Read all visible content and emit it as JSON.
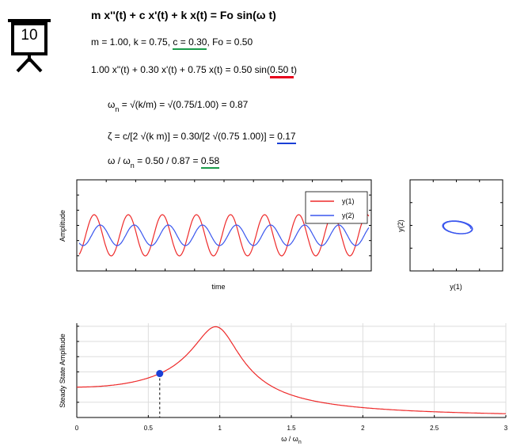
{
  "badge": {
    "number": "10",
    "icon": "presentation-board-icon"
  },
  "equations": {
    "title": "m x''(t) + c x'(t) + k x(t) = Fo sin(ω t)",
    "params_a": "m = 1.00, k = 0.75, ",
    "params_c": "c = 0.30",
    "params_b": ", Fo = 0.50",
    "ode_a": "1.00 x''(t) + 0.30 x'(t) + 0.75 x(t) = 0.50 sin(",
    "ode_hl": "0.50 t",
    "ode_b": ")",
    "omega_n_pre": "ω",
    "omega_n_sub": "n",
    "omega_n_post": " = √(k/m) = √(0.75/1.00) = 0.87",
    "zeta_pre": "ζ = c/[2 √(k m)] = 0.30/[2 √(0.75 1.00)] = ",
    "zeta_val": "0.17",
    "ratio_pre1": "ω / ω",
    "ratio_sub": "n",
    "ratio_pre2": " = 0.50 / 0.87 = ",
    "ratio_val": "0.58"
  },
  "colors": {
    "green": "#1a9a4a",
    "red": "#e8001c",
    "blue": "#1a3fd6",
    "series1": "#ee2a2a",
    "series2": "#3a56ee",
    "grid": "#dddddd"
  },
  "chart_data": [
    {
      "type": "line",
      "xlabel": "time",
      "ylabel": "Amplitude",
      "legend": "top-right",
      "series": [
        {
          "name": "y(1)",
          "amplitude": 1.0,
          "omega": 0.5,
          "cycles_visible": 8.5
        },
        {
          "name": "y(2)",
          "amplitude": 0.5,
          "omega": 0.5,
          "cycles_visible": 8.5
        }
      ]
    },
    {
      "type": "line",
      "xlabel": "y(1)",
      "ylabel": "y(2)",
      "description_points": [
        {
          "x": 0.0,
          "y": 0.0
        }
      ]
    },
    {
      "type": "line",
      "xlabel_main": "ω / ω",
      "xlabel_sub": "n",
      "ylabel": "Steady State Amplitude",
      "xlim": [
        0,
        3
      ],
      "xticks": [
        "0",
        "0.5",
        "1",
        "1.5",
        "2",
        "2.5",
        "3"
      ],
      "zeta": 0.17,
      "marker": {
        "x": 0.58,
        "color": "#1a3fd6"
      }
    }
  ]
}
